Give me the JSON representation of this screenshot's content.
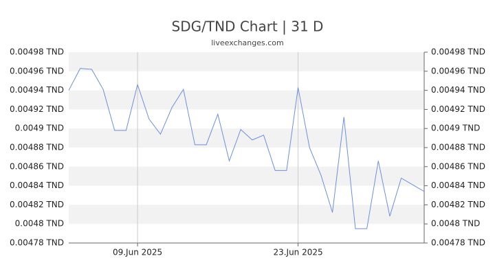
{
  "chart_data": {
    "type": "line",
    "title": "SDG/TND Chart | 31 D",
    "subtitle": "liveexchanges.com",
    "categories": [
      null,
      null,
      null,
      null,
      null,
      null,
      "09.Jun 2025",
      null,
      null,
      null,
      null,
      null,
      null,
      null,
      null,
      null,
      null,
      null,
      null,
      null,
      "23.Jun 2025",
      null,
      null,
      null,
      null,
      null,
      null,
      null,
      null,
      null,
      null,
      null
    ],
    "series": [
      {
        "name": "SDG/TND",
        "color": "#6b8fe0",
        "values": [
          0.00494,
          0.004963,
          0.004962,
          0.004941,
          0.004898,
          0.004898,
          0.004946,
          0.00491,
          0.004894,
          0.004922,
          0.004941,
          0.004883,
          0.004883,
          0.004915,
          0.004866,
          0.004899,
          0.004888,
          0.004893,
          0.004856,
          0.004856,
          0.004943,
          0.00488,
          0.004851,
          0.004812,
          0.004912,
          0.004795,
          0.004795,
          0.004866,
          0.004808,
          0.004848,
          0.004841,
          0.004834
        ]
      }
    ],
    "ylim": [
      0.00478,
      0.00498
    ],
    "yticks": [
      {
        "value": 0.00478,
        "label": "0.00478 TND"
      },
      {
        "value": 0.0048,
        "label": "0.0048 TND"
      },
      {
        "value": 0.00482,
        "label": "0.00482 TND"
      },
      {
        "value": 0.00484,
        "label": "0.00484 TND"
      },
      {
        "value": 0.00486,
        "label": "0.00486 TND"
      },
      {
        "value": 0.00488,
        "label": "0.00488 TND"
      },
      {
        "value": 0.0049,
        "label": "0.0049 TND"
      },
      {
        "value": 0.00492,
        "label": "0.00492 TND"
      },
      {
        "value": 0.00494,
        "label": "0.00494 TND"
      },
      {
        "value": 0.00496,
        "label": "0.00496 TND"
      },
      {
        "value": 0.00498,
        "label": "0.00498 TND"
      }
    ],
    "grid": true
  }
}
